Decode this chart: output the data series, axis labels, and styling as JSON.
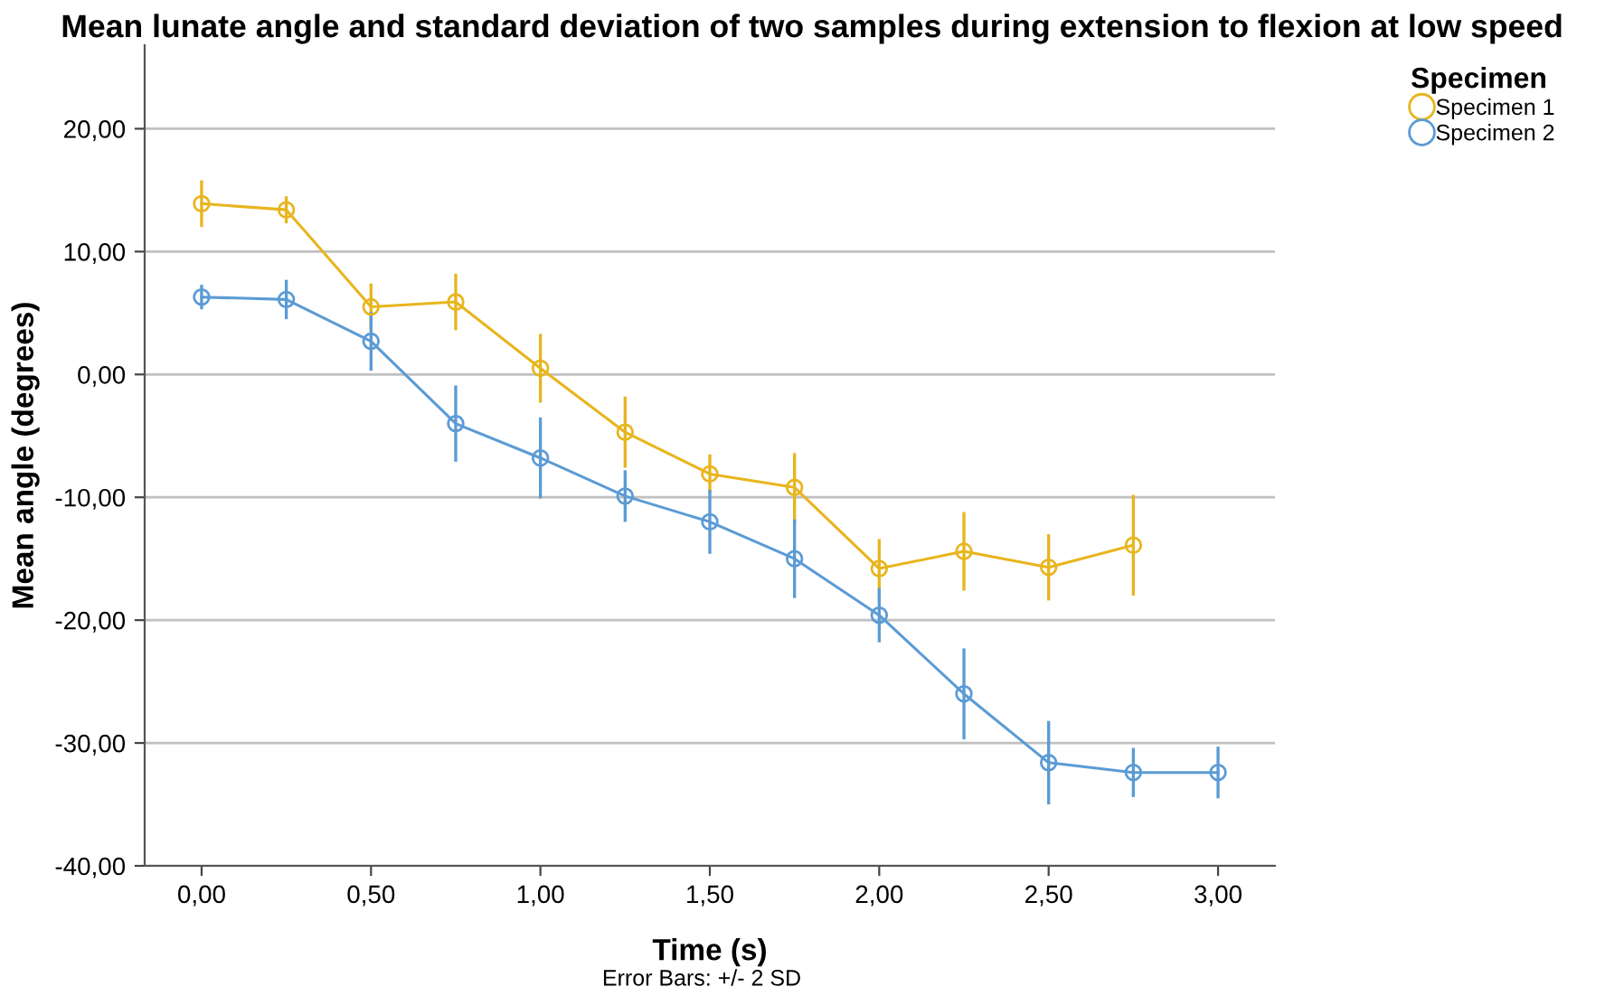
{
  "chart_data": {
    "type": "line",
    "title": "Mean lunate angle and standard deviation of two samples during extension to flexion at low speed",
    "xlabel": "Time (s)",
    "ylabel": "Mean angle (degrees)",
    "legend_title": "Specimen",
    "annotations": [
      "Error Bars: +/- 2 SD"
    ],
    "series": [
      {
        "name": "Specimen 1",
        "color": "#e8b51e",
        "x": [
          0,
          0.25,
          0.5,
          0.75,
          1.0,
          1.25,
          1.5,
          1.75,
          2.0,
          2.25,
          2.5,
          2.75
        ],
        "values": [
          13.9,
          13.4,
          5.5,
          5.9,
          0.5,
          -4.7,
          -8.1,
          -9.2,
          -15.8,
          -14.4,
          -15.7,
          -13.9
        ],
        "errors": [
          1.9,
          1.1,
          1.9,
          2.3,
          2.8,
          2.9,
          1.6,
          2.8,
          2.4,
          3.2,
          2.7,
          4.1
        ]
      },
      {
        "name": "Specimen 2",
        "color": "#5b9bd5",
        "x": [
          0,
          0.25,
          0.5,
          0.75,
          1.0,
          1.25,
          1.5,
          1.75,
          2.0,
          2.25,
          2.5,
          2.75,
          3.0
        ],
        "values": [
          6.3,
          6.1,
          2.7,
          -4.0,
          -6.8,
          -9.9,
          -12.0,
          -15.0,
          -19.6,
          -26.0,
          -31.6,
          -32.4,
          -32.4
        ],
        "errors": [
          1.0,
          1.6,
          2.4,
          3.1,
          3.3,
          2.1,
          2.6,
          3.2,
          2.2,
          3.7,
          3.4,
          2.0,
          2.1
        ]
      }
    ],
    "xlim": [
      -0.168,
      3.168
    ],
    "ylim": [
      -40,
      26.8
    ],
    "xticks": [
      {
        "value": 0,
        "label": "0,00"
      },
      {
        "value": 0.5,
        "label": "0,50"
      },
      {
        "value": 1.0,
        "label": "1,00"
      },
      {
        "value": 1.5,
        "label": "1,50"
      },
      {
        "value": 2.0,
        "label": "2,00"
      },
      {
        "value": 2.5,
        "label": "2,50"
      },
      {
        "value": 3.0,
        "label": "3,00"
      }
    ],
    "yticks": [
      {
        "value": -40,
        "label": "-40,00"
      },
      {
        "value": -30,
        "label": "-30,00"
      },
      {
        "value": -20,
        "label": "-20,00"
      },
      {
        "value": -10,
        "label": "-10,00"
      },
      {
        "value": 0,
        "label": "0,00"
      },
      {
        "value": 10,
        "label": "10,00"
      },
      {
        "value": 20,
        "label": "20,00"
      }
    ],
    "grid": "y",
    "legend": "top right",
    "marker": "circle",
    "line_style": "solid"
  }
}
